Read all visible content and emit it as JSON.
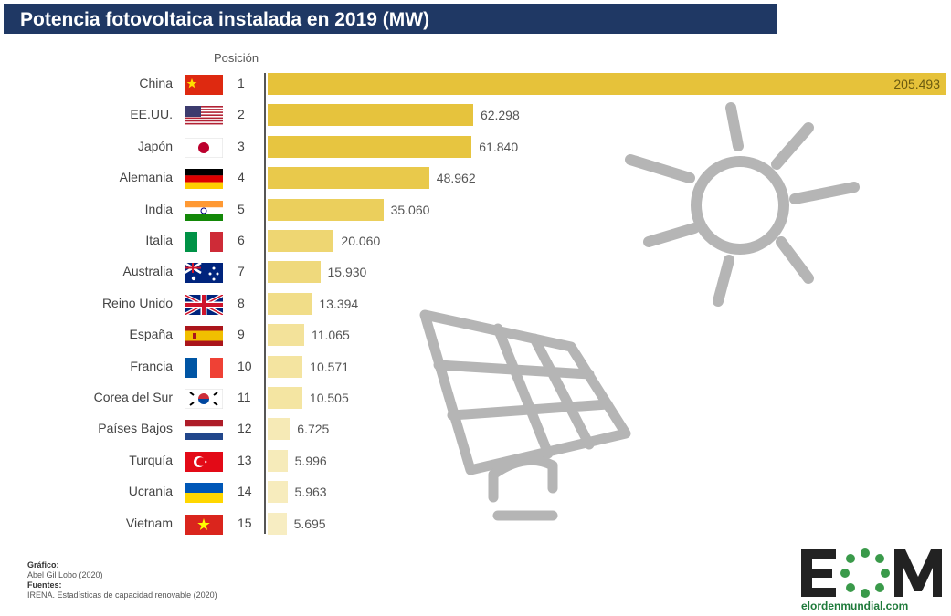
{
  "header": {
    "title": "Potencia fotovoltaica instalada en 2019 (MW)"
  },
  "chart_data": {
    "type": "bar",
    "orientation": "horizontal",
    "title": "Potencia fotovoltaica instalada en 2019 (MW)",
    "rank_label": "Posición",
    "categories": [
      "China",
      "EE.UU.",
      "Japón",
      "Alemania",
      "India",
      "Italia",
      "Australia",
      "Reino Unido",
      "España",
      "Francia",
      "Corea del Sur",
      "Países Bajos",
      "Turquía",
      "Ucrania",
      "Vietnam"
    ],
    "ranks": [
      "1",
      "2",
      "3",
      "4",
      "5",
      "6",
      "7",
      "8",
      "9",
      "10",
      "11",
      "12",
      "13",
      "14",
      "15"
    ],
    "values": [
      205493,
      62298,
      61840,
      48962,
      35060,
      20060,
      15930,
      13394,
      11065,
      10571,
      10505,
      6725,
      5996,
      5963,
      5695
    ],
    "value_labels": [
      "205.493",
      "62.298",
      "61.840",
      "48.962",
      "35.060",
      "20.060",
      "15.930",
      "13.394",
      "11.065",
      "10.571",
      "10.505",
      "6.725",
      "5.996",
      "5.963",
      "5.695"
    ],
    "xlim": [
      0,
      205493
    ],
    "bar_colors": [
      "#e6c23a",
      "#e6c33d",
      "#e7c540",
      "#e9c94b",
      "#ebcf5c",
      "#eed672",
      "#efd97c",
      "#f1dd88",
      "#f3e29a",
      "#f4e4a0",
      "#f4e5a2",
      "#f6eab6",
      "#f6ebba",
      "#f7ecbd",
      "#f7edc2"
    ]
  },
  "flags": [
    {
      "icon": "china-flag-icon"
    },
    {
      "icon": "usa-flag-icon"
    },
    {
      "icon": "japan-flag-icon"
    },
    {
      "icon": "germany-flag-icon"
    },
    {
      "icon": "india-flag-icon"
    },
    {
      "icon": "italy-flag-icon"
    },
    {
      "icon": "australia-flag-icon"
    },
    {
      "icon": "uk-flag-icon"
    },
    {
      "icon": "spain-flag-icon"
    },
    {
      "icon": "france-flag-icon"
    },
    {
      "icon": "south-korea-flag-icon"
    },
    {
      "icon": "netherlands-flag-icon"
    },
    {
      "icon": "turkey-flag-icon"
    },
    {
      "icon": "ukraine-flag-icon"
    },
    {
      "icon": "vietnam-flag-icon"
    }
  ],
  "credits": {
    "graphic_label": "Gráfico:",
    "graphic_author": "Abel Gil Lobo (2020)",
    "sources_label": "Fuentes:",
    "sources_text": "IRENA. Estadísticas de capacidad renovable (2020)"
  },
  "logo": {
    "text": "EOM",
    "site": "elordenmundial.com"
  },
  "colors": {
    "title_bar": "#1f3864",
    "bar_main": "#e6c23a",
    "icon_gray": "#b5b5b5",
    "logo_green": "#1e7a3a"
  }
}
